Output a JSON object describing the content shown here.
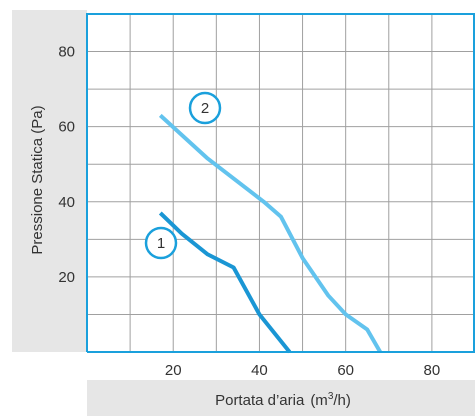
{
  "chart_data": {
    "type": "line",
    "xlabel": "Portata d’aria",
    "xlabel_unit_prefix": "(m",
    "xlabel_unit_sup": "3",
    "xlabel_unit_suffix": "/h)",
    "ylabel": "Pressione Statica (Pa)",
    "xlim": [
      0,
      90
    ],
    "ylim": [
      0,
      90
    ],
    "x_ticks": [
      20,
      40,
      60,
      80
    ],
    "y_ticks": [
      20,
      40,
      60,
      80
    ],
    "grid": true,
    "series": [
      {
        "name": "1",
        "color": "#1a96d4",
        "x": [
          17,
          22,
          28,
          34,
          40,
          47
        ],
        "y": [
          37,
          31.5,
          26,
          22.5,
          10,
          0
        ]
      },
      {
        "name": "2",
        "color": "#62c3ee",
        "x": [
          17,
          28,
          41,
          45,
          50,
          56,
          60,
          65,
          68
        ],
        "y": [
          63,
          51.5,
          40,
          36,
          25,
          15,
          10,
          6,
          0
        ]
      }
    ]
  },
  "colors": {
    "frame": "#1aa0dc",
    "grid": "#a0a0a0",
    "axis_band": "#e6e6e6",
    "marker_outline": "#1aa0dc"
  }
}
